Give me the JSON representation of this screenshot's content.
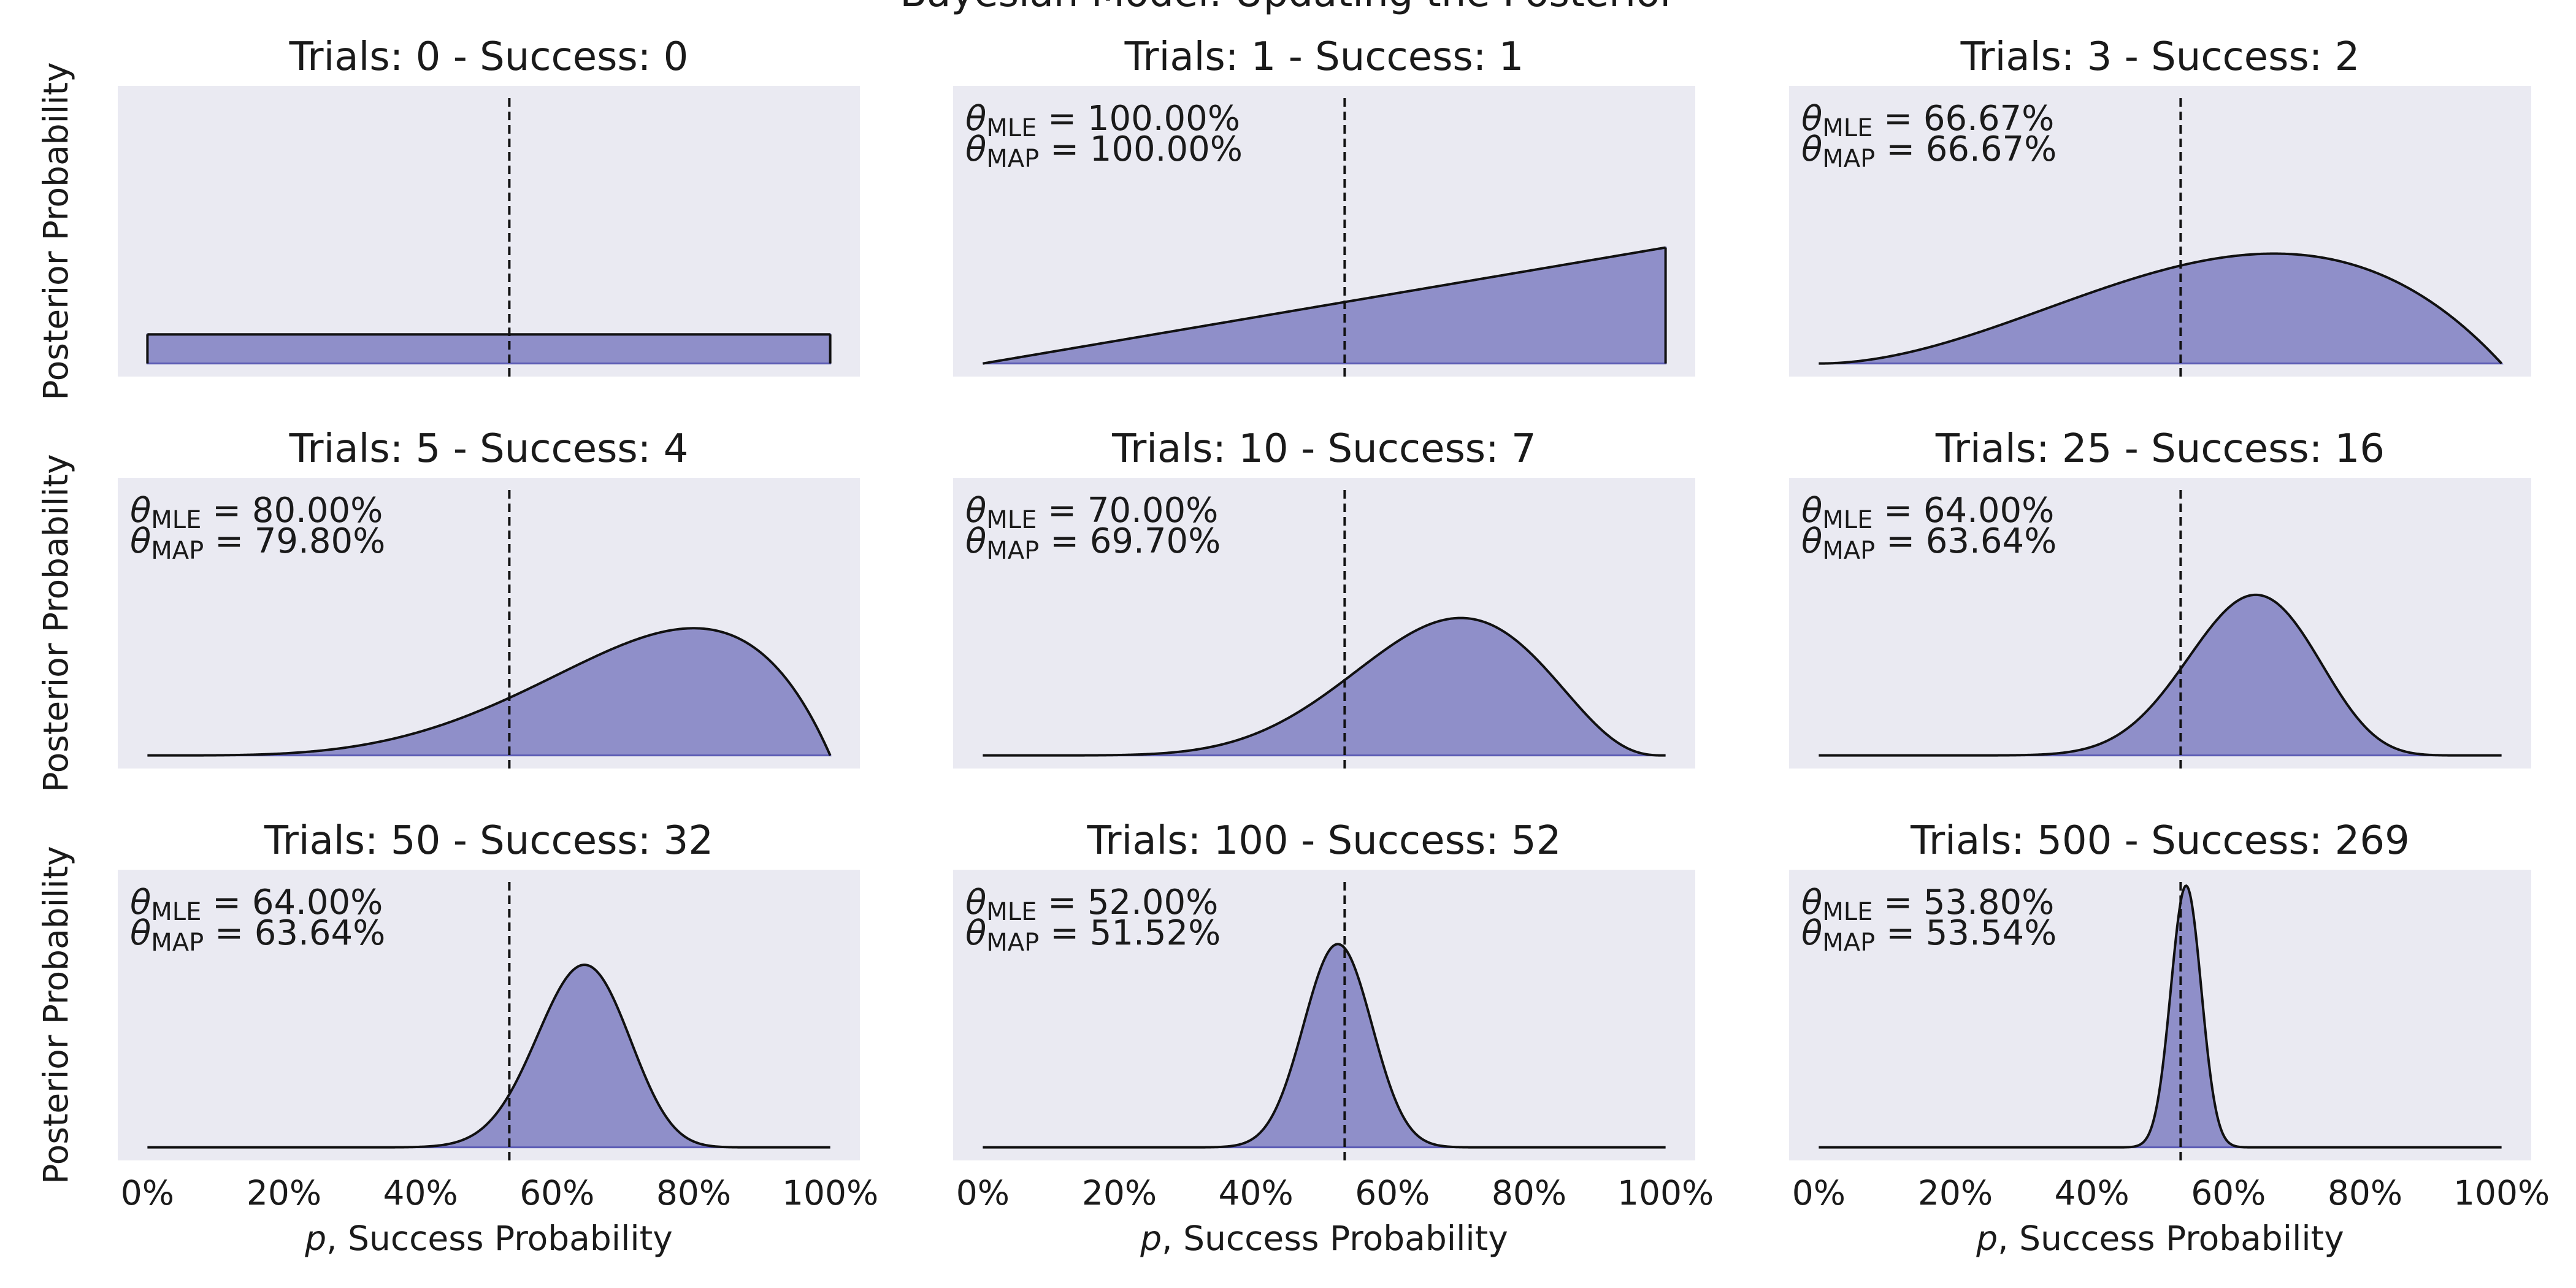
{
  "figure": {
    "suptitle": "Bayesian Model: Updating the Posterior"
  },
  "chart_data": {
    "type": "area",
    "x_range": [
      0,
      100
    ],
    "x_unit": "%",
    "x_ticks": [
      "0%",
      "20%",
      "40%",
      "60%",
      "80%",
      "100%"
    ],
    "xlabel_italic": "p",
    "xlabel_rest": ", Success Probability",
    "ylabel": "Posterior Probability",
    "reference_line_x": 53,
    "grid": false,
    "background": "#eaeaf2",
    "fill_color": "#8f8fc9",
    "edge_color": "#5d5db5",
    "curve_color": "#111111",
    "panels": [
      {
        "title": "Trials: 0 - Success: 0",
        "trials": 0,
        "successes": 0,
        "mle": null,
        "map": null,
        "mle_text": "",
        "map_text": ""
      },
      {
        "title": "Trials: 1 - Success: 1",
        "trials": 1,
        "successes": 1,
        "mle": 100.0,
        "map": 100.0,
        "mle_text": " = 100.00%",
        "map_text": " = 100.00%"
      },
      {
        "title": "Trials: 3 - Success: 2",
        "trials": 3,
        "successes": 2,
        "mle": 66.67,
        "map": 66.67,
        "mle_text": " = 66.67%",
        "map_text": " = 66.67%"
      },
      {
        "title": "Trials: 5 - Success: 4",
        "trials": 5,
        "successes": 4,
        "mle": 80.0,
        "map": 79.8,
        "mle_text": " = 80.00%",
        "map_text": " = 79.80%"
      },
      {
        "title": "Trials: 10 - Success: 7",
        "trials": 10,
        "successes": 7,
        "mle": 70.0,
        "map": 69.7,
        "mle_text": " = 70.00%",
        "map_text": " = 69.70%"
      },
      {
        "title": "Trials: 25 - Success: 16",
        "trials": 25,
        "successes": 16,
        "mle": 64.0,
        "map": 63.64,
        "mle_text": " = 64.00%",
        "map_text": " = 63.64%"
      },
      {
        "title": "Trials: 50 - Success: 32",
        "trials": 50,
        "successes": 32,
        "mle": 64.0,
        "map": 63.64,
        "mle_text": " = 64.00%",
        "map_text": " = 63.64%"
      },
      {
        "title": "Trials: 100 - Success: 52",
        "trials": 100,
        "successes": 52,
        "mle": 52.0,
        "map": 51.52,
        "mle_text": " = 52.00%",
        "map_text": " = 51.52%"
      },
      {
        "title": "Trials: 500 - Success: 269",
        "trials": 500,
        "successes": 269,
        "mle": 53.8,
        "map": 53.54,
        "mle_text": " = 53.80%",
        "map_text": " = 53.54%"
      }
    ],
    "annotation_symbol": "θ",
    "mle_sub": "MLE",
    "map_sub": "MAP"
  }
}
